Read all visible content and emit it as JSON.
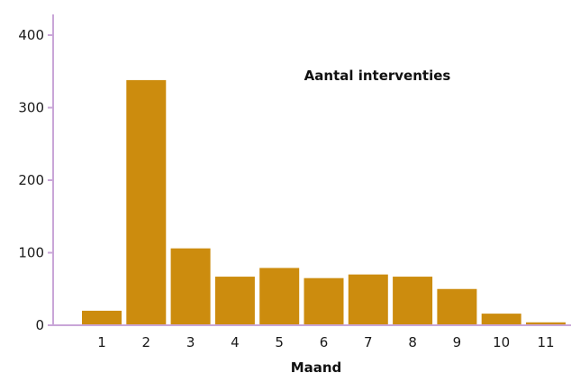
{
  "chart_data": {
    "type": "bar",
    "title": "Aantal interventies",
    "xlabel": "Maand",
    "ylabel": "",
    "categories": [
      "1",
      "2",
      "3",
      "4",
      "5",
      "6",
      "7",
      "8",
      "9",
      "10",
      "11"
    ],
    "values": [
      20,
      338,
      106,
      67,
      79,
      65,
      70,
      67,
      50,
      16,
      4
    ],
    "ylim": [
      0,
      400
    ],
    "yticks": [
      "0",
      "100",
      "200",
      "300",
      "400"
    ],
    "grid": false,
    "legend": "none",
    "colors": {
      "bar": "#cc8c0e",
      "axis": "#c9a6d8",
      "text": "#1a1a1a"
    }
  }
}
